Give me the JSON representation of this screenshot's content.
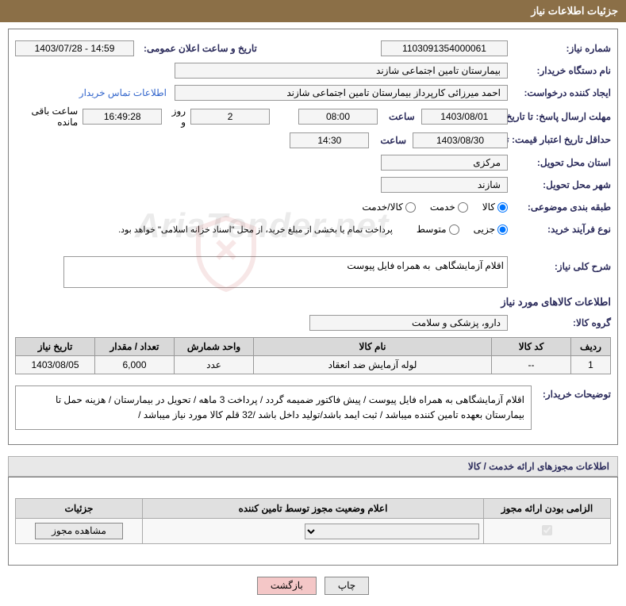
{
  "header": {
    "title": "جزئیات اطلاعات نیاز"
  },
  "fields": {
    "need_number_label": "شماره نیاز:",
    "need_number": "1103091354000061",
    "announce_datetime_label": "تاریخ و ساعت اعلان عمومی:",
    "announce_datetime": "14:59 - 1403/07/28",
    "buyer_org_label": "نام دستگاه خریدار:",
    "buyer_org": "بیمارستان تامین اجتماعی شازند",
    "requester_label": "ایجاد کننده درخواست:",
    "requester": "احمد میرزائی کارپرداز بیمارستان تامین اجتماعی شازند",
    "buyer_contact_link": "اطلاعات تماس خریدار",
    "response_deadline_label": "مهلت ارسال پاسخ: تا تاریخ:",
    "response_date": "1403/08/01",
    "time_label": "ساعت",
    "response_time": "08:00",
    "days_remaining": "2",
    "days_and_label": "روز و",
    "time_remaining": "16:49:28",
    "remaining_label": "ساعت باقی مانده",
    "validity_label": "حداقل تاریخ اعتبار قیمت: تا تاریخ:",
    "validity_date": "1403/08/30",
    "validity_time": "14:30",
    "delivery_province_label": "استان محل تحویل:",
    "delivery_province": "مرکزی",
    "delivery_city_label": "شهر محل تحویل:",
    "delivery_city": "شازند",
    "category_label": "طبقه بندی موضوعی:",
    "cat_goods": "کالا",
    "cat_service": "خدمت",
    "cat_goods_service": "کالا/خدمت",
    "purchase_type_label": "نوع فرآیند خرید:",
    "pt_small": "جزیی",
    "pt_medium": "متوسط",
    "payment_note": "پرداخت تمام یا بخشی از مبلغ خرید، از محل \"اسناد خزانه اسلامی\" خواهد بود.",
    "general_desc_label": "شرح کلی نیاز:",
    "general_desc": "اقلام آزمایشگاهی  به همراه فایل پیوست",
    "goods_info_title": "اطلاعات کالاهای مورد نیاز",
    "goods_group_label": "گروه کالا:",
    "goods_group": "دارو، پزشکی و سلامت"
  },
  "table": {
    "headers": {
      "row": "ردیف",
      "code": "کد کالا",
      "name": "نام کالا",
      "unit": "واحد شمارش",
      "qty": "تعداد / مقدار",
      "date": "تاریخ نیاز"
    },
    "rows": [
      {
        "row": "1",
        "code": "--",
        "name": "لوله آزمایش ضد انعقاد",
        "unit": "عدد",
        "qty": "6,000",
        "date": "1403/08/05"
      }
    ]
  },
  "buyer_desc_label": "توضیحات خریدار:",
  "buyer_desc": "اقلام آزمایشگاهی  به همراه فایل پیوست / پیش فاکتور ضمیمه گردد / پرداخت 3 ماهه / تحویل در بیمارستان / هزینه حمل تا بیمارستان بعهده تامین کننده میباشد / ثبت ایمد باشد/تولید داخل باشد /32 قلم کالا مورد نیاز میباشد  /",
  "license_section_title": "اطلاعات مجوزهای ارائه خدمت / کالا",
  "license_table": {
    "headers": {
      "mandatory": "الزامی بودن ارائه مجوز",
      "status": "اعلام وضعیت مجوز توسط تامین کننده",
      "details": "جزئیات"
    },
    "view_license_btn": "مشاهده مجوز"
  },
  "buttons": {
    "print": "چاپ",
    "back": "بازگشت"
  },
  "watermark": "AriaTender.net"
}
